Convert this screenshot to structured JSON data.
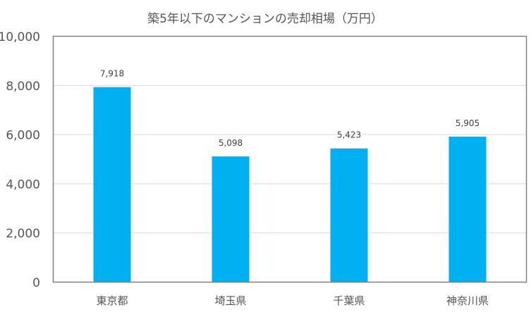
{
  "chart_data": {
    "type": "bar",
    "title": "築5年以下のマンションの売却相場（万円）",
    "categories": [
      "東京都",
      "埼玉県",
      "千葉県",
      "神奈川県"
    ],
    "values": [
      7918,
      5098,
      5423,
      5905
    ],
    "data_labels": [
      "7,918",
      "5,098",
      "5,423",
      "5,905"
    ],
    "ylim": [
      0,
      10000
    ],
    "yticks": [
      0,
      2000,
      4000,
      6000,
      8000,
      10000
    ],
    "ytick_labels": [
      "0",
      "2,000",
      "4,000",
      "6,000",
      "8,000",
      "10,000"
    ],
    "xlabel": "",
    "ylabel": "",
    "grid": true,
    "legend": "none",
    "bar_color": "#00B0F0"
  }
}
